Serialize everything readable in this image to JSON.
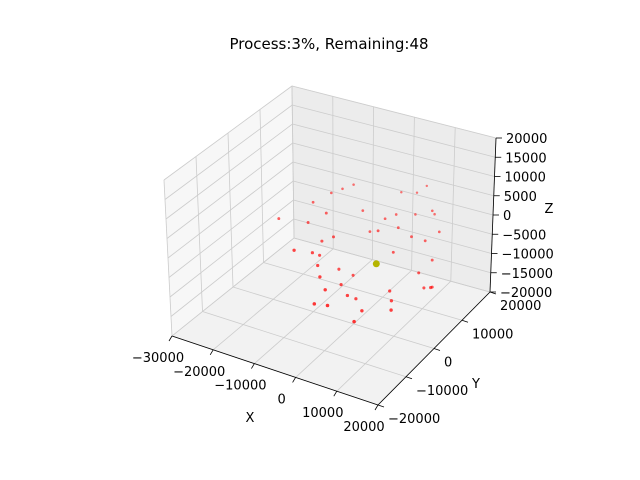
{
  "chart_data": {
    "type": "scatter",
    "title": "Process:3%, Remaining:48",
    "xlabel": "X",
    "ylabel": "Y",
    "zlabel": "Z",
    "xlim": [
      -30000,
      20000
    ],
    "ylim": [
      -20000,
      20000
    ],
    "zlim": [
      -20000,
      20000
    ],
    "x_ticks": [
      -30000,
      -20000,
      -10000,
      0,
      10000,
      20000
    ],
    "y_ticks": [
      -20000,
      -10000,
      0,
      10000,
      20000
    ],
    "z_ticks": [
      -20000,
      -15000,
      -10000,
      -5000,
      0,
      5000,
      10000,
      15000,
      20000
    ],
    "x_tick_labels": [
      "−30000",
      "−20000",
      "−10000",
      "0",
      "10000",
      "20000"
    ],
    "y_tick_labels": [
      "−20000",
      "−10000",
      "0",
      "10000",
      "20000"
    ],
    "z_tick_labels": [
      "−20000",
      "−15000",
      "−10000",
      "−5000",
      "0",
      "5000",
      "10000",
      "15000",
      "20000"
    ],
    "grid": true,
    "series": [
      {
        "color": "#ff0000",
        "points": [
          [
            -22000,
            5000,
            -3000
          ],
          [
            -13000,
            -2000,
            -4000
          ],
          [
            -10000,
            0,
            -5000
          ],
          [
            -9000,
            1000,
            -6000
          ],
          [
            -8000,
            -1000,
            -7000
          ],
          [
            -7000,
            3000,
            -2000
          ],
          [
            -6000,
            -3000,
            -8000
          ],
          [
            -5000,
            2000,
            -9000
          ],
          [
            -4000,
            -4000,
            -10000
          ],
          [
            -3000,
            0,
            -11000
          ],
          [
            -2000,
            -6000,
            -12000
          ],
          [
            0,
            -2000,
            -11500
          ],
          [
            2000,
            8000,
            2000
          ],
          [
            4000,
            9000,
            3000
          ],
          [
            6000,
            7000,
            1500
          ],
          [
            8000,
            10000,
            3500
          ],
          [
            10000,
            6000,
            1000
          ],
          [
            12000,
            11000,
            4000
          ],
          [
            13000,
            6500,
            500
          ],
          [
            15000,
            8500,
            2000
          ],
          [
            14000,
            3000,
            -5000
          ],
          [
            16000,
            2000,
            -7500
          ],
          [
            17000,
            3500,
            -8000
          ],
          [
            18000,
            1500,
            -6500
          ],
          [
            9000,
            0,
            -9000
          ],
          [
            10500,
            -1500,
            -10000
          ],
          [
            5000,
            -4000,
            -12500
          ],
          [
            -12000,
            9000,
            4000
          ],
          [
            -10000,
            10000,
            5000
          ],
          [
            -8000,
            11000,
            6000
          ],
          [
            -11000,
            6000,
            1000
          ],
          [
            -14000,
            4000,
            -1000
          ],
          [
            3000,
            12000,
            6500
          ],
          [
            6500,
            12500,
            7000
          ],
          [
            -1000,
            7000,
            -1500
          ],
          [
            1000,
            -500,
            -13000
          ],
          [
            -6000,
            -5000,
            -13500
          ],
          [
            11500,
            -3000,
            -11000
          ],
          [
            -9500,
            2500,
            -3500
          ],
          [
            7000,
            4000,
            -2500
          ],
          [
            2500,
            5000,
            1000
          ],
          [
            -3500,
            8000,
            2500
          ],
          [
            12500,
            9500,
            6000
          ],
          [
            -15000,
            7000,
            2000
          ],
          [
            4500,
            -6000,
            -14000
          ],
          [
            -1500,
            2000,
            -9500
          ],
          [
            15500,
            5500,
            -3000
          ],
          [
            8500,
            13000,
            9000
          ]
        ]
      },
      {
        "color": "#b5b500",
        "points": [
          [
            5000,
            1000,
            -4000
          ]
        ]
      }
    ]
  }
}
